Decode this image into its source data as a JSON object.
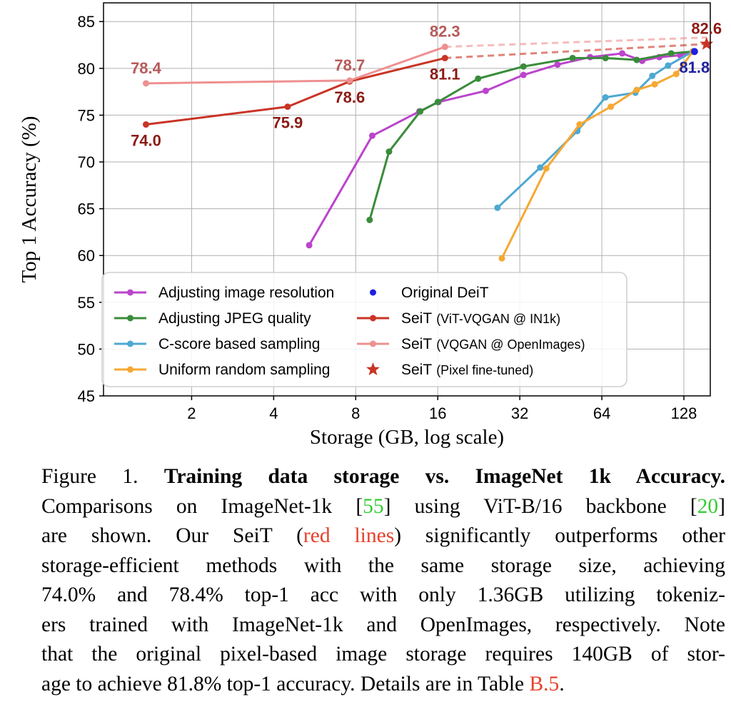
{
  "colors": {
    "purple": "#bb44cc",
    "green": "#3a8c3a",
    "cyan": "#4ea8d2",
    "orange": "#f6a833",
    "blue": "#1f20e0",
    "dark_red": "#c93425",
    "pink": "#ee9090",
    "label_dark_red": "#8c1a14",
    "label_pink": "#b85a5a",
    "label_blue": "#1f20a0"
  },
  "chart_data": {
    "type": "line",
    "xlabel": "Storage (GB, log scale)",
    "ylabel": "Top 1 Accuracy (%)",
    "xscale": "log2",
    "xlim": [
      0.95,
      160
    ],
    "ylim": [
      45,
      87
    ],
    "xticks": [
      2,
      4,
      8,
      16,
      32,
      64,
      128
    ],
    "xtick_labels": [
      "2",
      "4",
      "8",
      "16",
      "32",
      "64",
      "128"
    ],
    "yticks": [
      45,
      50,
      55,
      60,
      65,
      70,
      75,
      80,
      85
    ],
    "ytick_labels": [
      "45",
      "50",
      "55",
      "60",
      "65",
      "70",
      "75",
      "80",
      "85"
    ],
    "grid": true,
    "legend_position": "bottom-center",
    "series": [
      {
        "name": "Adjusting image resolution",
        "color_key": "purple",
        "x": [
          5.4,
          9.2,
          13.7,
          16.1,
          24.0,
          33.0,
          44.0,
          58.0,
          76.0,
          90.0,
          104.0,
          124.0,
          138.0
        ],
        "y": [
          61.1,
          72.8,
          75.4,
          76.4,
          77.6,
          79.3,
          80.4,
          81.2,
          81.6,
          80.8,
          81.2,
          81.4,
          81.8
        ]
      },
      {
        "name": "Adjusting JPEG quality",
        "color_key": "green",
        "x": [
          9.0,
          10.6,
          13.8,
          16.0,
          22.5,
          33.0,
          50.0,
          66.0,
          86.0,
          115.0,
          138.0
        ],
        "y": [
          63.8,
          71.1,
          75.4,
          76.4,
          78.9,
          80.2,
          81.1,
          81.1,
          80.9,
          81.6,
          81.8
        ]
      },
      {
        "name": "C-score based sampling",
        "color_key": "cyan",
        "x": [
          26.5,
          38.0,
          52.0,
          66.0,
          85.0,
          98.0,
          112.0,
          138.0
        ],
        "y": [
          65.1,
          69.4,
          73.3,
          76.9,
          77.4,
          79.2,
          80.3,
          81.8
        ]
      },
      {
        "name": "Uniform random sampling",
        "color_key": "orange",
        "x": [
          27.5,
          40.0,
          53.0,
          69.0,
          86.0,
          100.0,
          120.0,
          138.0
        ],
        "y": [
          59.7,
          69.3,
          74.0,
          75.9,
          77.7,
          78.3,
          79.4,
          81.8
        ]
      },
      {
        "name": "Original DeiT",
        "color_key": "blue",
        "marker": "dot",
        "x": [
          140.0
        ],
        "y": [
          81.8
        ]
      },
      {
        "name": "SeiT (ViT-VQGAN @ IN1k)",
        "color_key": "dark_red",
        "x": [
          1.36,
          4.5,
          7.6,
          17.0
        ],
        "y": [
          74.0,
          75.9,
          78.6,
          81.1
        ],
        "extension": {
          "x": [
            17.0,
            155.0
          ],
          "y": [
            81.1,
            82.6
          ]
        }
      },
      {
        "name": "SeiT (VQGAN @ OpenImages)",
        "color_key": "pink",
        "x": [
          1.36,
          7.6,
          17.0
        ],
        "y": [
          78.4,
          78.7,
          82.3
        ],
        "extension": {
          "x": [
            17.0,
            155.0
          ],
          "y": [
            82.3,
            83.3
          ]
        }
      },
      {
        "name": "SeiT (Pixel fine-tuned)",
        "color_key": "dark_red",
        "marker": "star",
        "x": [
          155.0
        ],
        "y": [
          82.6
        ]
      }
    ],
    "annotations": [
      {
        "text": "78.4",
        "x": 1.36,
        "y": 78.4,
        "color_key": "label_pink",
        "anchor": "above"
      },
      {
        "text": "78.7",
        "x": 7.6,
        "y": 78.7,
        "color_key": "label_pink",
        "anchor": "above"
      },
      {
        "text": "82.3",
        "x": 17.0,
        "y": 82.3,
        "color_key": "label_pink",
        "anchor": "above"
      },
      {
        "text": "74.0",
        "x": 1.36,
        "y": 74.0,
        "color_key": "label_dark_red",
        "anchor": "below"
      },
      {
        "text": "75.9",
        "x": 4.5,
        "y": 75.9,
        "color_key": "label_dark_red",
        "anchor": "below"
      },
      {
        "text": "78.6",
        "x": 7.6,
        "y": 78.6,
        "color_key": "label_dark_red",
        "anchor": "below"
      },
      {
        "text": "81.1",
        "x": 17.0,
        "y": 81.1,
        "color_key": "label_dark_red",
        "anchor": "below"
      },
      {
        "text": "81.8",
        "x": 140.0,
        "y": 81.8,
        "color_key": "label_blue",
        "anchor": "below"
      },
      {
        "text": "82.6",
        "x": 155.0,
        "y": 82.6,
        "color_key": "label_dark_red",
        "anchor": "above"
      }
    ],
    "legend": {
      "left_column": [
        {
          "label": "Adjusting image resolution",
          "color_key": "purple",
          "kind": "line"
        },
        {
          "label": "Adjusting JPEG quality",
          "color_key": "green",
          "kind": "line"
        },
        {
          "label": "C-score based sampling",
          "color_key": "cyan",
          "kind": "line"
        },
        {
          "label": "Uniform random sampling",
          "color_key": "orange",
          "kind": "line"
        }
      ],
      "right_column": [
        {
          "label": "Original DeiT",
          "sub": "",
          "color_key": "blue",
          "kind": "dot"
        },
        {
          "label": "SeiT",
          "sub": "(ViT-VQGAN @ IN1k)",
          "color_key": "dark_red",
          "kind": "line"
        },
        {
          "label": "SeiT",
          "sub": "(VQGAN @ OpenImages)",
          "color_key": "pink",
          "kind": "line"
        },
        {
          "label": "SeiT",
          "sub": "(Pixel fine-tuned)",
          "color_key": "dark_red",
          "kind": "star"
        }
      ]
    }
  },
  "caption": {
    "figure_label": "Figure 1.",
    "title": "Training data storage vs.  ImageNet 1k Accuracy.",
    "seg1": "Comparisons on ImageNet-1k [",
    "cite1": "55",
    "seg2": "] using ViT-B/16 backbone [",
    "cite2": "20",
    "seg3": "]",
    "seg4": "are shown.  Our SeiT (",
    "red_text": "red lines",
    "seg5": ") significantly outperforms other",
    "line4": "storage-efficient methods with the same storage size, achieving",
    "line5": "74.0% and 78.4% top-1 acc with only 1.36GB utilizing tokeniz-",
    "line6": "ers trained with ImageNet-1k and OpenImages, respectively. Note",
    "line7": "that the original pixel-based image storage requires 140GB of stor-",
    "seg6": "age to achieve 81.8% top-1 accuracy. Details are in Table ",
    "table_ref": "B.5",
    "seg7": "."
  }
}
